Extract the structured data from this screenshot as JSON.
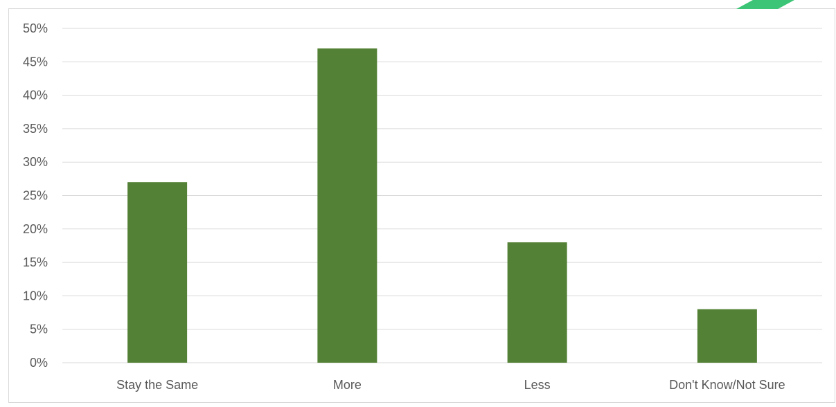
{
  "chart_data": {
    "type": "bar",
    "title": "",
    "xlabel": "",
    "ylabel": "",
    "categories": [
      "Stay the Same",
      "More",
      "Less",
      "Don't Know/Not Sure"
    ],
    "values": [
      27,
      47,
      18,
      8
    ],
    "unit": "%",
    "ylim": [
      0,
      50
    ],
    "yticks": [
      "0%",
      "5%",
      "10%",
      "15%",
      "20%",
      "25%",
      "30%",
      "35%",
      "40%",
      "45%",
      "50%"
    ],
    "grid": true,
    "legend": "none",
    "colors": {
      "bar": "#538135",
      "gridline": "#d9d9d9",
      "border": "#d9d9d9",
      "tick_text": "#595959",
      "corner_accent": "#3cc576"
    }
  }
}
